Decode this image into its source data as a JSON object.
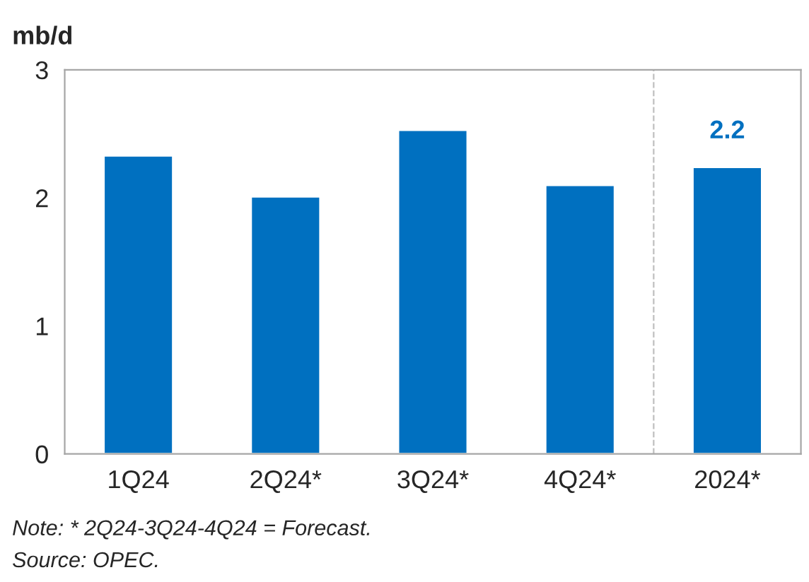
{
  "chart_data": {
    "type": "bar",
    "ylabel": "mb/d",
    "categories": [
      "1Q24",
      "2Q24*",
      "3Q24*",
      "4Q24*",
      "2024*"
    ],
    "values": [
      2.33,
      2.01,
      2.53,
      2.1,
      2.24
    ],
    "color": "#0070c0",
    "value_labels": [
      null,
      null,
      null,
      null,
      "2.2"
    ],
    "ylim": [
      0,
      3
    ],
    "yticks": [
      0,
      1,
      2,
      3
    ],
    "grid": false,
    "legend": false,
    "annotations": [
      "Note: * 2Q24-3Q24-4Q24 = Forecast.",
      "Source: OPEC."
    ]
  }
}
